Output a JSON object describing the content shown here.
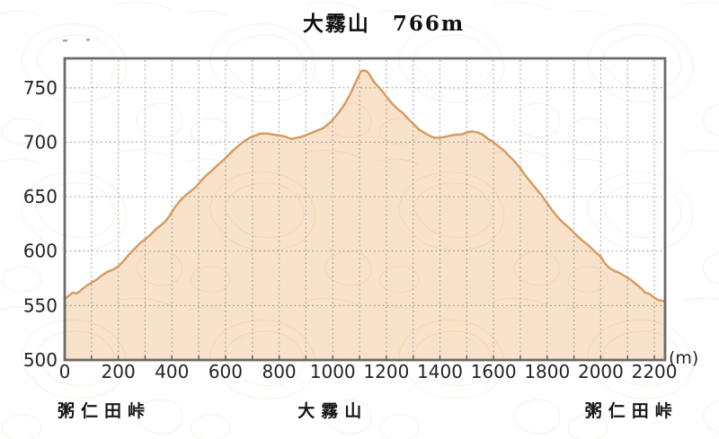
{
  "chart_data": {
    "type": "area",
    "title": "大霧山　766m",
    "peak_name": "大霧山",
    "peak_elevation_label": "766m",
    "x_axis_unit": "(m)",
    "y_unit": "m",
    "xlim": [
      0,
      2240
    ],
    "ylim": [
      500,
      777
    ],
    "x_ticks": [
      0,
      200,
      400,
      600,
      800,
      1000,
      1200,
      1400,
      1600,
      1800,
      2000,
      2200
    ],
    "y_ticks": [
      500,
      550,
      600,
      650,
      700,
      750
    ],
    "x_grid_step": 100,
    "y_grid_step": 50,
    "grid": true,
    "legend": false,
    "waypoints": [
      {
        "label": "粥仁田峠",
        "x": 0,
        "anchor": "start",
        "dx": -8
      },
      {
        "label": "大霧山",
        "x": 1000,
        "anchor": "middle",
        "dx": 0
      },
      {
        "label": "粥仁田峠",
        "x": 2115,
        "anchor": "middle",
        "dx": 0
      }
    ],
    "colors": {
      "fill": "#f8e0c6",
      "line": "#d59a5f",
      "grid": "#8e8e8e",
      "border": "#6b6b6b",
      "text": "#242424",
      "contour_outer": "#f0e2d1",
      "contour_inner": "#e7cba2"
    },
    "series": [
      {
        "name": "elevation_profile",
        "points": [
          [
            0,
            556
          ],
          [
            15,
            559
          ],
          [
            30,
            562
          ],
          [
            45,
            561
          ],
          [
            60,
            564
          ],
          [
            80,
            568
          ],
          [
            100,
            571
          ],
          [
            120,
            574
          ],
          [
            140,
            578
          ],
          [
            160,
            581
          ],
          [
            180,
            583
          ],
          [
            200,
            586
          ],
          [
            220,
            591
          ],
          [
            240,
            597
          ],
          [
            260,
            602
          ],
          [
            280,
            607
          ],
          [
            300,
            611
          ],
          [
            320,
            615
          ],
          [
            340,
            620
          ],
          [
            360,
            624
          ],
          [
            375,
            627
          ],
          [
            390,
            632
          ],
          [
            410,
            640
          ],
          [
            430,
            646
          ],
          [
            450,
            651
          ],
          [
            470,
            655
          ],
          [
            490,
            659
          ],
          [
            510,
            665
          ],
          [
            530,
            670
          ],
          [
            550,
            674
          ],
          [
            570,
            679
          ],
          [
            590,
            683
          ],
          [
            610,
            688
          ],
          [
            630,
            693
          ],
          [
            650,
            697
          ],
          [
            670,
            701
          ],
          [
            690,
            704
          ],
          [
            710,
            706
          ],
          [
            730,
            708
          ],
          [
            755,
            708
          ],
          [
            780,
            707
          ],
          [
            805,
            706
          ],
          [
            825,
            705
          ],
          [
            845,
            703
          ],
          [
            865,
            704
          ],
          [
            885,
            705
          ],
          [
            905,
            707
          ],
          [
            925,
            709
          ],
          [
            945,
            711
          ],
          [
            965,
            713
          ],
          [
            985,
            717
          ],
          [
            1005,
            722
          ],
          [
            1025,
            728
          ],
          [
            1045,
            735
          ],
          [
            1065,
            744
          ],
          [
            1080,
            752
          ],
          [
            1095,
            760
          ],
          [
            1105,
            765
          ],
          [
            1115,
            766
          ],
          [
            1128,
            765
          ],
          [
            1140,
            761
          ],
          [
            1155,
            755
          ],
          [
            1170,
            751
          ],
          [
            1185,
            747
          ],
          [
            1200,
            742
          ],
          [
            1220,
            736
          ],
          [
            1240,
            731
          ],
          [
            1260,
            727
          ],
          [
            1280,
            722
          ],
          [
            1300,
            717
          ],
          [
            1320,
            712
          ],
          [
            1340,
            709
          ],
          [
            1360,
            706
          ],
          [
            1380,
            704
          ],
          [
            1400,
            704
          ],
          [
            1420,
            705
          ],
          [
            1440,
            706
          ],
          [
            1460,
            707
          ],
          [
            1480,
            707
          ],
          [
            1500,
            709
          ],
          [
            1520,
            710
          ],
          [
            1540,
            709
          ],
          [
            1560,
            707
          ],
          [
            1580,
            703
          ],
          [
            1600,
            700
          ],
          [
            1620,
            696
          ],
          [
            1640,
            692
          ],
          [
            1660,
            687
          ],
          [
            1680,
            682
          ],
          [
            1700,
            676
          ],
          [
            1720,
            669
          ],
          [
            1740,
            663
          ],
          [
            1760,
            657
          ],
          [
            1780,
            651
          ],
          [
            1800,
            644
          ],
          [
            1820,
            637
          ],
          [
            1840,
            631
          ],
          [
            1860,
            626
          ],
          [
            1880,
            622
          ],
          [
            1900,
            617
          ],
          [
            1920,
            612
          ],
          [
            1940,
            608
          ],
          [
            1960,
            604
          ],
          [
            1980,
            599
          ],
          [
            2000,
            595
          ],
          [
            2015,
            589
          ],
          [
            2030,
            585
          ],
          [
            2050,
            582
          ],
          [
            2070,
            580
          ],
          [
            2090,
            577
          ],
          [
            2110,
            574
          ],
          [
            2130,
            570
          ],
          [
            2150,
            566
          ],
          [
            2165,
            562
          ],
          [
            2180,
            561
          ],
          [
            2195,
            558
          ],
          [
            2215,
            555
          ],
          [
            2240,
            554
          ]
        ]
      }
    ]
  }
}
